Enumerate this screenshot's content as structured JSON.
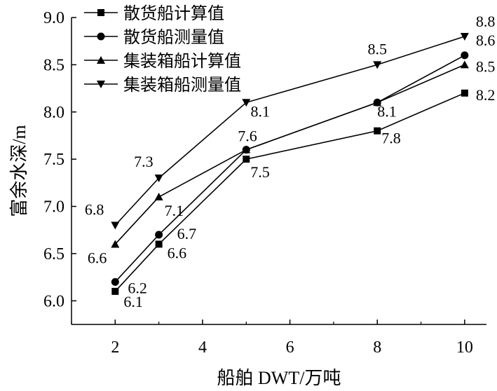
{
  "chart_data": {
    "type": "line",
    "title": "",
    "xlabel": "船舶 DWT/万吨",
    "ylabel": "富余水深/m",
    "xlim": [
      1,
      10.5
    ],
    "ylim": [
      5.75,
      9.0
    ],
    "xticks": [
      2,
      4,
      6,
      8,
      10
    ],
    "yticks": [
      6.0,
      6.5,
      7.0,
      7.5,
      8.0,
      8.5,
      9.0
    ],
    "grid": false,
    "legend_position": "top-left",
    "series": [
      {
        "name": "散货船计算值",
        "marker": "square",
        "x": [
          2,
          3,
          5,
          8,
          10
        ],
        "values": [
          6.1,
          6.6,
          7.5,
          7.8,
          8.2
        ],
        "labels": [
          "6.1",
          "6.6",
          "7.5",
          "7.8",
          "8.2"
        ]
      },
      {
        "name": "散货船测量值",
        "marker": "circle",
        "x": [
          2,
          3,
          5,
          8,
          10
        ],
        "values": [
          6.2,
          6.7,
          7.6,
          8.1,
          8.6
        ],
        "labels": [
          "6.2",
          "6.7",
          "7.6",
          "8.1",
          "8.6"
        ]
      },
      {
        "name": "集装箱船计算值",
        "marker": "triangle-up",
        "x": [
          2,
          3,
          5,
          8,
          10
        ],
        "values": [
          6.6,
          7.1,
          7.6,
          8.1,
          8.5
        ],
        "labels": [
          "6.6",
          "7.1",
          "",
          "",
          "8.5"
        ]
      },
      {
        "name": "集装箱船测量值",
        "marker": "triangle-down",
        "x": [
          2,
          3,
          5,
          8,
          10
        ],
        "values": [
          6.8,
          7.3,
          8.1,
          8.5,
          8.8
        ],
        "labels": [
          "6.8",
          "7.3",
          "8.1",
          "8.5",
          "8.8"
        ]
      }
    ]
  }
}
